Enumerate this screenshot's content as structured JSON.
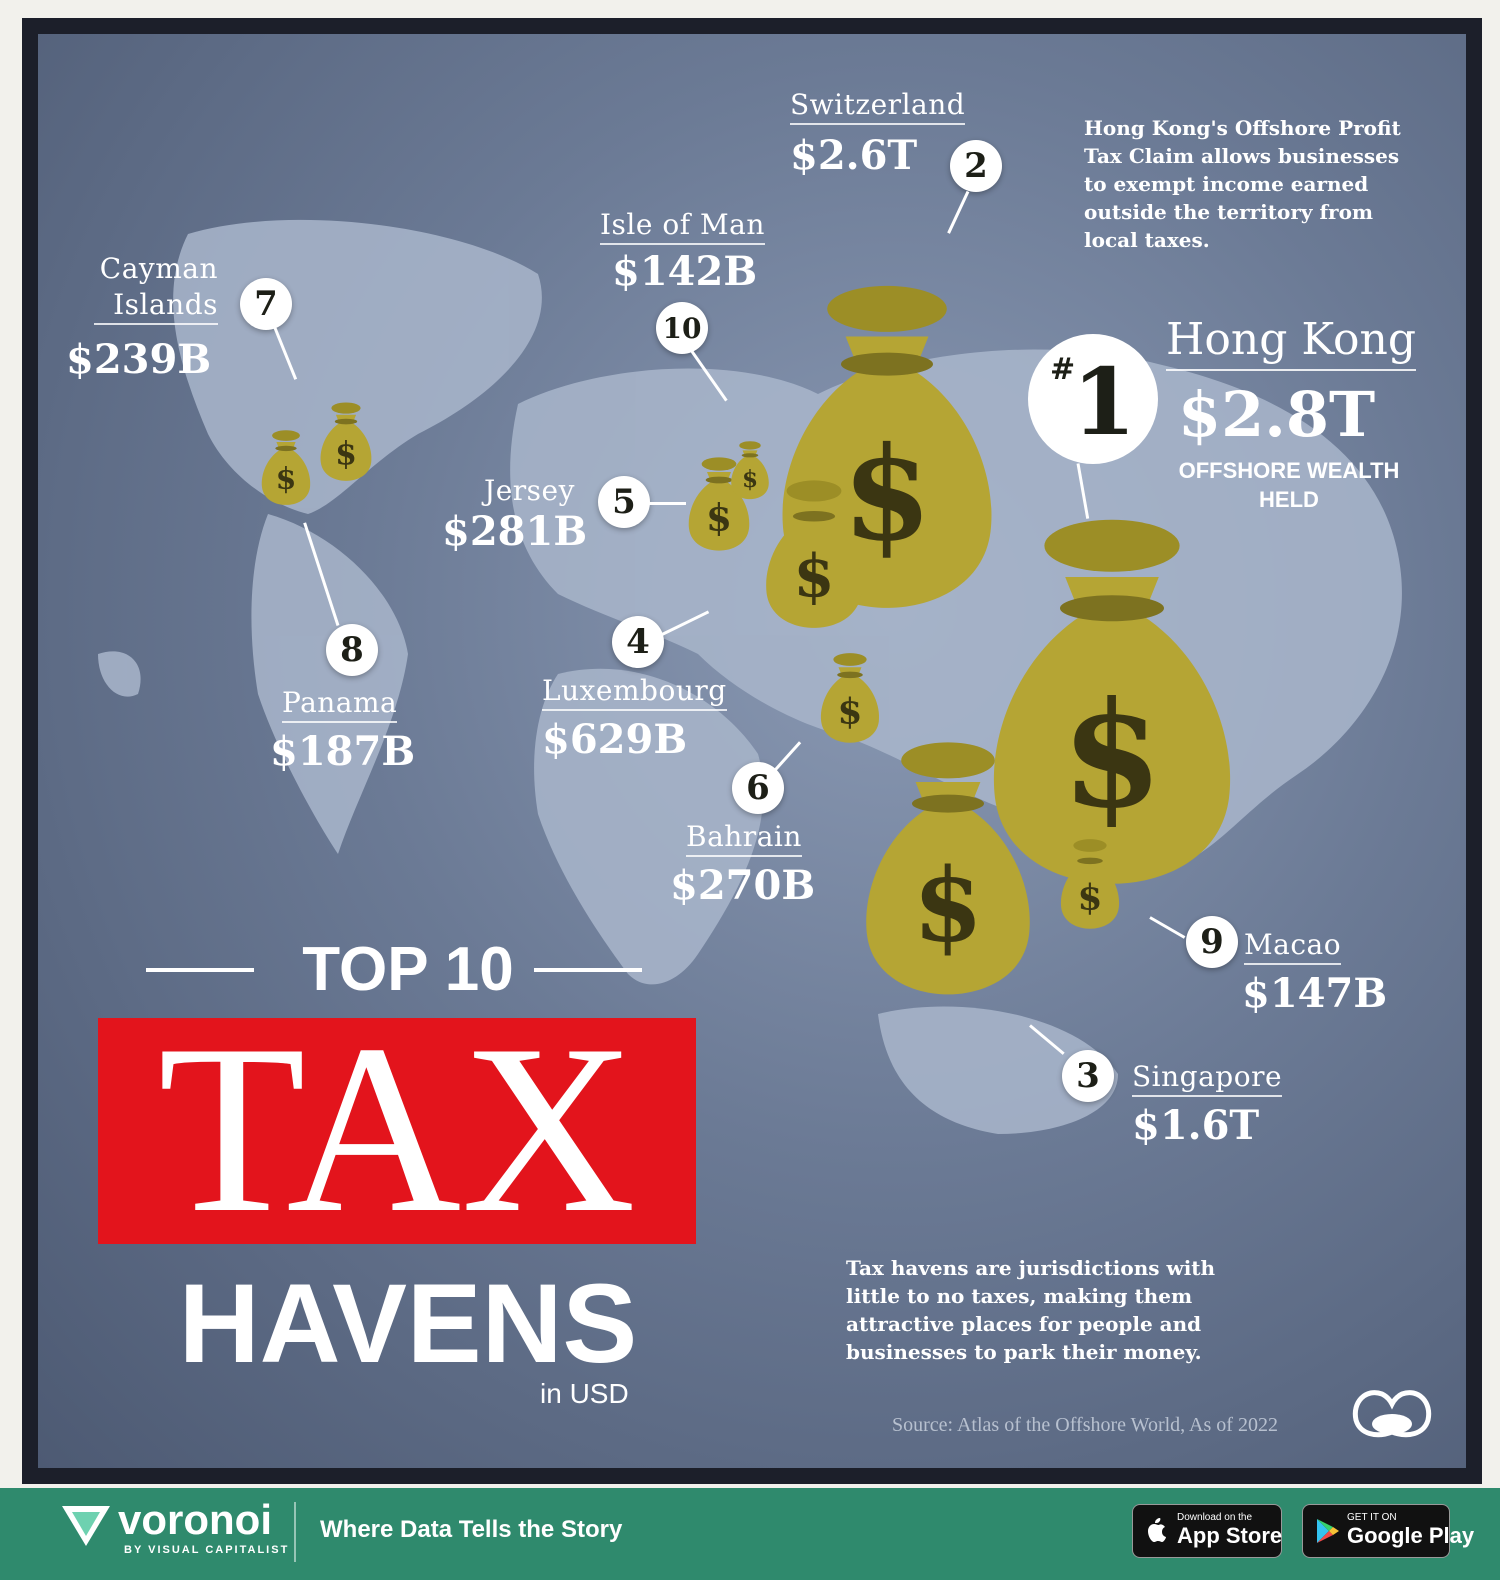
{
  "havens": [
    {
      "rank": "2",
      "name": "Switzerland",
      "value": "$2.6T"
    },
    {
      "rank": "10",
      "name": "Isle of Man",
      "value": "$142B"
    },
    {
      "rank": "7",
      "name": "Cayman Islands",
      "name_line1": "Cayman",
      "name_line2": "Islands",
      "value": "$239B"
    },
    {
      "rank": "5",
      "name": "Jersey",
      "value": "$281B"
    },
    {
      "rank": "8",
      "name": "Panama",
      "value": "$187B"
    },
    {
      "rank": "4",
      "name": "Luxembourg",
      "value": "$629B"
    },
    {
      "rank": "6",
      "name": "Bahrain",
      "value": "$270B"
    },
    {
      "rank": "9",
      "name": "Macao",
      "value": "$147B"
    },
    {
      "rank": "3",
      "name": "Singapore",
      "value": "$1.6T"
    }
  ],
  "top": {
    "hash": "#",
    "rank": "1",
    "name": "Hong Kong",
    "value": "$2.8T",
    "subtitle": "OFFSHORE WEALTH HELD",
    "note": "Hong Kong's Offshore Profit Tax Claim allows businesses to exempt income earned outside the territory from local taxes."
  },
  "title": {
    "line1": "TOP 10",
    "line2": "TAX",
    "line3": "HAVENS",
    "unit": "in USD"
  },
  "description": "Tax havens are jurisdictions with little to no taxes, making them attractive places for people and businesses to park their money.",
  "source": "Source: Atlas of the Offshore World, As of 2022",
  "footer": {
    "brand": "voronoi",
    "brand_sub": "BY VISUAL CAPITALIST",
    "tagline": "Where Data Tells the Story",
    "app_store_small": "Download on the",
    "app_store_big": "App Store",
    "google_small": "GET IT ON",
    "google_big": "Google Play"
  },
  "colors": {
    "bag": "#b5a534",
    "tax_red": "#e3141c",
    "footer_green": "#2f8a6d"
  },
  "icons": [
    "money-bag-icon",
    "apple-icon",
    "google-play-icon",
    "voronoi-logo-icon",
    "visual-capitalist-logo-icon"
  ]
}
